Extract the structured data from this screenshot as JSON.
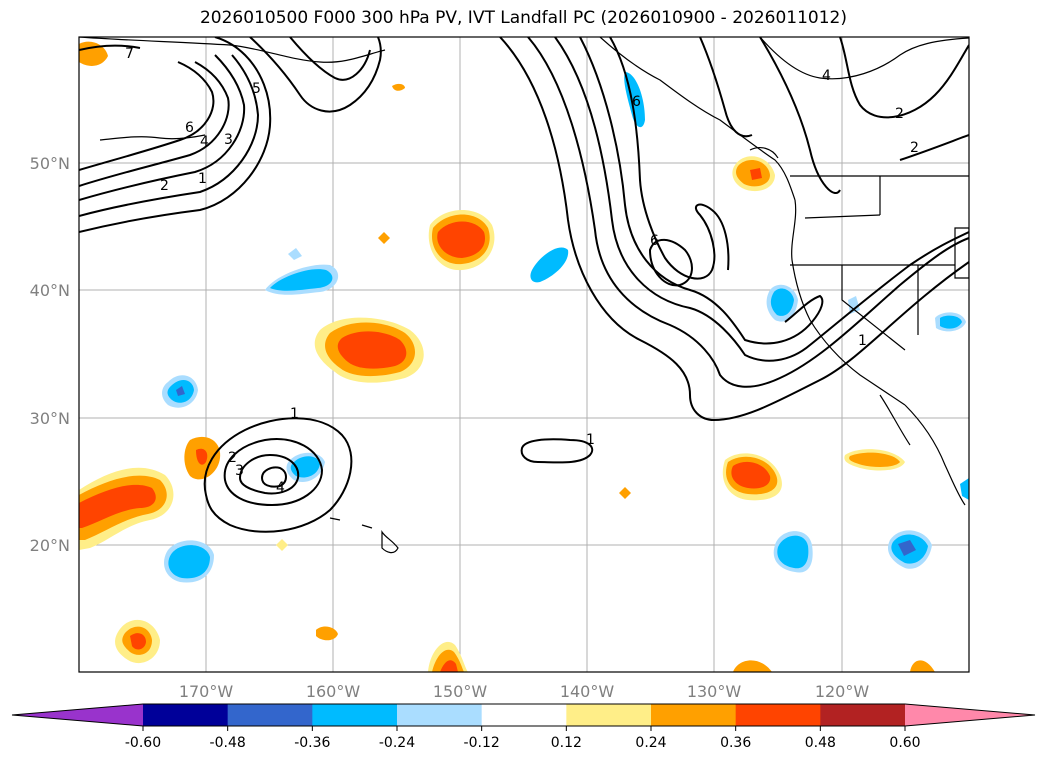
{
  "title": "2026010500 F000 300 hPa PV, IVT Landfall PC (2026010900 - 2026011012)",
  "lon_labels": [
    "170°W",
    "160°W",
    "150°W",
    "140°W",
    "130°W",
    "120°W"
  ],
  "lat_labels": [
    "50°N",
    "40°N",
    "30°N",
    "20°N"
  ],
  "colorbar": {
    "ticks": [
      "-0.60",
      "-0.48",
      "-0.36",
      "-0.24",
      "-0.12",
      "0.12",
      "0.24",
      "0.36",
      "0.48",
      "0.60"
    ],
    "colors": [
      "#9933cc",
      "#000099",
      "#3366cc",
      "#00bbff",
      "#aaddff",
      "#ffffff",
      "#ffee88",
      "#ffa000",
      "#ff4400",
      "#b22222",
      "#ff88aa"
    ]
  },
  "contour_labels": {
    "a": "7",
    "b": "5",
    "c": "6",
    "d": "4",
    "e": "3",
    "f": "2",
    "g": "1",
    "h": "1",
    "i": "2",
    "j": "3",
    "k": "4",
    "l": "1",
    "m": "6",
    "n": "6",
    "o": "4",
    "p": "2",
    "q": "2",
    "r": "1"
  }
}
